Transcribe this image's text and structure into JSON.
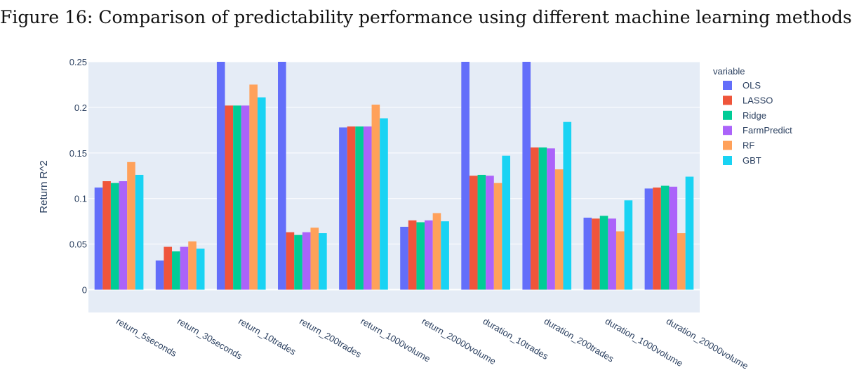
{
  "figure_title": "Figure 16: Comparison of predictability performance using different machine learning methods",
  "chart_data": {
    "type": "bar",
    "title": "",
    "xlabel": "",
    "ylabel": "Return R^2",
    "ylim": [
      -0.025,
      0.25
    ],
    "yticks": [
      0,
      0.05,
      0.1,
      0.15,
      0.2,
      0.25
    ],
    "ytick_labels": [
      "0",
      "0.05",
      "0.1",
      "0.15",
      "0.2",
      "0.25"
    ],
    "grid": true,
    "legend_title": "variable",
    "legend_position": "right",
    "categories": [
      "return_5seconds",
      "return_30seconds",
      "return_10trades",
      "return_200trades",
      "return_1000volume",
      "return_20000volume",
      "duration_10trades",
      "duration_200trades",
      "duration_1000volume",
      "duration_20000volume"
    ],
    "series": [
      {
        "name": "OLS",
        "color": "#636efa",
        "values": [
          0.112,
          0.032,
          0.26,
          0.26,
          0.178,
          0.069,
          0.26,
          0.26,
          0.079,
          0.111
        ]
      },
      {
        "name": "LASSO",
        "color": "#ef553b",
        "values": [
          0.119,
          0.047,
          0.202,
          0.063,
          0.179,
          0.076,
          0.125,
          0.156,
          0.078,
          0.112
        ]
      },
      {
        "name": "Ridge",
        "color": "#00cc96",
        "values": [
          0.117,
          0.042,
          0.202,
          0.06,
          0.179,
          0.074,
          0.126,
          0.156,
          0.081,
          0.114
        ]
      },
      {
        "name": "FarmPredict",
        "color": "#ab63fa",
        "values": [
          0.119,
          0.047,
          0.202,
          0.063,
          0.179,
          0.076,
          0.125,
          0.155,
          0.078,
          0.113
        ]
      },
      {
        "name": "RF",
        "color": "#ffa15a",
        "values": [
          0.14,
          0.053,
          0.225,
          0.068,
          0.203,
          0.084,
          0.117,
          0.132,
          0.064,
          0.062
        ]
      },
      {
        "name": "GBT",
        "color": "#19d3f3",
        "values": [
          0.126,
          0.045,
          0.211,
          0.062,
          0.188,
          0.075,
          0.147,
          0.184,
          0.098,
          0.124
        ]
      }
    ]
  }
}
